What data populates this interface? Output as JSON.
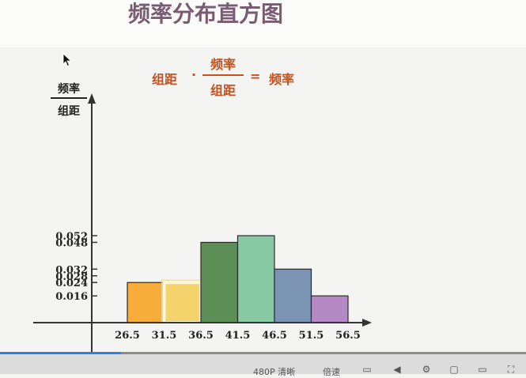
{
  "slide": {
    "title": "频率分布直方图",
    "formula": {
      "left": "组距",
      "dot": "·",
      "numerator": "频率",
      "denominator": "组距",
      "equals": "=",
      "right": "频率"
    }
  },
  "chart_data": {
    "type": "bar",
    "title": "",
    "ylabel_numerator": "频率",
    "ylabel_denominator": "组距",
    "x_ticks": [
      "26.5",
      "31.5",
      "36.5",
      "41.5",
      "46.5",
      "51.5",
      "56.5"
    ],
    "y_ticks": [
      "0.016",
      "0.024",
      "0.028",
      "0.032",
      "0.048",
      "0.052"
    ],
    "bins": [
      {
        "from": 26.5,
        "to": 31.5,
        "value": 0.024
      },
      {
        "from": 31.5,
        "to": 36.5,
        "value": 0.024
      },
      {
        "from": 36.5,
        "to": 41.5,
        "value": 0.048
      },
      {
        "from": 41.5,
        "to": 46.5,
        "value": 0.052
      },
      {
        "from": 46.5,
        "to": 51.5,
        "value": 0.032
      },
      {
        "from": 51.5,
        "to": 56.5,
        "value": 0.016
      }
    ],
    "highlighted_bin": 1,
    "colors": [
      "#f6ad3c",
      "#f4d36c",
      "#5b8f55",
      "#86c9a3",
      "#7b94b4",
      "#b58ac4"
    ],
    "xlim": [
      20.5,
      62.5
    ],
    "ylim": [
      0,
      0.06
    ],
    "grid": false,
    "legend": "none"
  },
  "player": {
    "progress": 0.23,
    "quality": "480P 清晰",
    "speed": "倍速",
    "icons": [
      "danmaku-icon",
      "volume-icon",
      "settings-icon",
      "pip-icon",
      "widescreen-icon",
      "fullscreen-icon"
    ]
  }
}
